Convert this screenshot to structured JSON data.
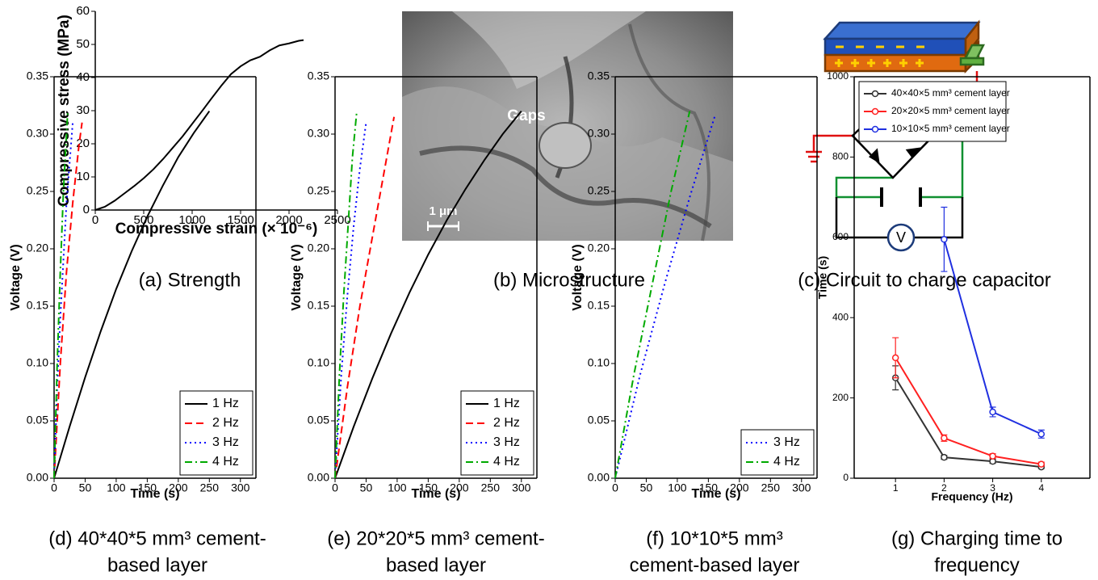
{
  "chart_data": [
    {
      "type": "line",
      "ylabel": "Compressive stress (MPa)",
      "xlabel": "Compressive strain (× 10⁻⁶)",
      "xlim": [
        0,
        2500
      ],
      "xticks": [
        0,
        500,
        1000,
        1500,
        2000,
        2500
      ],
      "ylim": [
        0,
        60
      ],
      "yticks": [
        0,
        10,
        20,
        30,
        40,
        50,
        60
      ],
      "series": [
        {
          "color": "#000000",
          "linestyle": "solid",
          "x": [
            0,
            100,
            200,
            300,
            400,
            500,
            600,
            700,
            800,
            900,
            1000,
            1100,
            1200,
            1300,
            1400,
            1500,
            1600,
            1700,
            1800,
            1900,
            2000,
            2100,
            2150
          ],
          "values": [
            0,
            1,
            2.8,
            5,
            7.2,
            9.6,
            12.3,
            15.4,
            18.8,
            22.2,
            26,
            29.8,
            33.7,
            37.5,
            41,
            43.4,
            45.2,
            46.3,
            48.2,
            49.7,
            50.3,
            51.1,
            51.3
          ]
        }
      ],
      "caption": [
        "(a) Strength"
      ]
    },
    {
      "type": "line",
      "ylabel": "Voltage (V)",
      "xlabel": "Time (s)",
      "legend": "lower right",
      "xlim": [
        0,
        325
      ],
      "xticks": [
        0,
        50,
        100,
        150,
        200,
        250,
        300
      ],
      "ylim": [
        0,
        0.35
      ],
      "yticks": [
        {
          "value": 0,
          "label": "0.00"
        },
        {
          "value": 0.05,
          "label": "0.05"
        },
        {
          "value": 0.1,
          "label": "0.10"
        },
        {
          "value": 0.15,
          "label": "0.15"
        },
        {
          "value": 0.2,
          "label": "0.20"
        },
        {
          "value": 0.25,
          "label": "0.25"
        },
        {
          "value": 0.3,
          "label": "0.30"
        },
        {
          "value": 0.35,
          "label": "0.35"
        }
      ],
      "series": [
        {
          "name": "1 Hz",
          "color": "#000000",
          "linestyle": "solid",
          "x": [
            0,
            25,
            50,
            75,
            100,
            125,
            150,
            175,
            200,
            225,
            250
          ],
          "values": [
            0,
            0.045,
            0.088,
            0.128,
            0.165,
            0.198,
            0.228,
            0.255,
            0.28,
            0.301,
            0.32
          ]
        },
        {
          "name": "2 Hz",
          "color": "#ff0000",
          "linestyle": "dashed",
          "x": [
            0,
            10,
            20,
            30,
            40,
            45
          ],
          "values": [
            0,
            0.1,
            0.18,
            0.24,
            0.29,
            0.31
          ]
        },
        {
          "name": "3 Hz",
          "color": "#0000ff",
          "linestyle": "dotted",
          "x": [
            0,
            5,
            10,
            20,
            30
          ],
          "values": [
            0,
            0.08,
            0.14,
            0.24,
            0.31
          ]
        },
        {
          "name": "4 Hz",
          "color": "#00aa00",
          "linestyle": "dashdot",
          "x": [
            0,
            5,
            10,
            15,
            22
          ],
          "values": [
            0,
            0.1,
            0.18,
            0.25,
            0.32
          ]
        }
      ],
      "caption": [
        "(d) 40*40*5 mm³ cement-",
        "based layer"
      ]
    },
    {
      "type": "line",
      "ylabel": "Voltage (V)",
      "xlabel": "Time (s)",
      "legend": "lower right",
      "xlim": [
        0,
        325
      ],
      "xticks": [
        0,
        50,
        100,
        150,
        200,
        250,
        300
      ],
      "ylim": [
        0,
        0.35
      ],
      "yticks": [
        {
          "value": 0,
          "label": "0.00"
        },
        {
          "value": 0.05,
          "label": "0.05"
        },
        {
          "value": 0.1,
          "label": "0.10"
        },
        {
          "value": 0.15,
          "label": "0.15"
        },
        {
          "value": 0.2,
          "label": "0.20"
        },
        {
          "value": 0.25,
          "label": "0.25"
        },
        {
          "value": 0.3,
          "label": "0.30"
        },
        {
          "value": 0.35,
          "label": "0.35"
        }
      ],
      "series": [
        {
          "name": "1 Hz",
          "color": "#000000",
          "linestyle": "solid",
          "x": [
            0,
            30,
            60,
            90,
            120,
            150,
            180,
            210,
            240,
            270,
            300
          ],
          "values": [
            0,
            0.045,
            0.087,
            0.126,
            0.162,
            0.195,
            0.225,
            0.252,
            0.277,
            0.3,
            0.32
          ]
        },
        {
          "name": "2 Hz",
          "color": "#ff0000",
          "linestyle": "dashed",
          "x": [
            0,
            20,
            40,
            60,
            80,
            95
          ],
          "values": [
            0,
            0.08,
            0.15,
            0.21,
            0.27,
            0.315
          ]
        },
        {
          "name": "3 Hz",
          "color": "#0000ff",
          "linestyle": "dotted",
          "x": [
            0,
            10,
            20,
            30,
            40,
            50
          ],
          "values": [
            0,
            0.09,
            0.16,
            0.22,
            0.27,
            0.31
          ]
        },
        {
          "name": "4 Hz",
          "color": "#00aa00",
          "linestyle": "dashdot",
          "x": [
            0,
            7,
            14,
            21,
            28,
            35
          ],
          "values": [
            0,
            0.09,
            0.16,
            0.22,
            0.28,
            0.32
          ]
        }
      ],
      "caption": [
        "(e) 20*20*5 mm³ cement-",
        "based layer"
      ]
    },
    {
      "type": "line",
      "ylabel": "Voltage (V)",
      "xlabel": "Time (s)",
      "legend": "lower right",
      "xlim": [
        0,
        325
      ],
      "xticks": [
        0,
        50,
        100,
        150,
        200,
        250,
        300
      ],
      "ylim": [
        0,
        0.35
      ],
      "yticks": [
        {
          "value": 0,
          "label": "0.00"
        },
        {
          "value": 0.05,
          "label": "0.05"
        },
        {
          "value": 0.1,
          "label": "0.10"
        },
        {
          "value": 0.15,
          "label": "0.15"
        },
        {
          "value": 0.2,
          "label": "0.20"
        },
        {
          "value": 0.25,
          "label": "0.25"
        },
        {
          "value": 0.3,
          "label": "0.30"
        },
        {
          "value": 0.35,
          "label": "0.35"
        }
      ],
      "series": [
        {
          "name": "3 Hz",
          "color": "#0000ff",
          "linestyle": "dotted",
          "x": [
            0,
            40,
            80,
            120,
            160
          ],
          "values": [
            0,
            0.09,
            0.17,
            0.245,
            0.315
          ]
        },
        {
          "name": "4 Hz",
          "color": "#00aa00",
          "linestyle": "dashdot",
          "x": [
            0,
            30,
            60,
            90,
            120
          ],
          "values": [
            0,
            0.09,
            0.17,
            0.25,
            0.32
          ]
        }
      ],
      "caption": [
        "(f) 10*10*5 mm³",
        "cement-based layer"
      ]
    },
    {
      "type": "line",
      "ylabel": "Time (s)",
      "xlabel": "Frequency (Hz)",
      "legend": "upper left",
      "markers": true,
      "xlim": [
        0.15,
        5
      ],
      "xticks": [
        1,
        2,
        3,
        4
      ],
      "ylim": [
        0,
        1000
      ],
      "yticks": [
        0,
        200,
        400,
        600,
        800,
        1000
      ],
      "x": [
        1,
        2,
        3,
        4
      ],
      "series": [
        {
          "name": "40×40×5 mm³ cement layer",
          "color": "#333333",
          "linestyle": "solid",
          "values": [
            250,
            52,
            42,
            28
          ],
          "errors": [
            30,
            5,
            5,
            4
          ]
        },
        {
          "name": "20×20×5 mm³ cement layer",
          "color": "#ff2020",
          "linestyle": "solid",
          "values": [
            300,
            100,
            55,
            35
          ],
          "errors": [
            50,
            8,
            6,
            5
          ]
        },
        {
          "name": "10×10×5 mm³ cement layer",
          "color": "#2030e0",
          "linestyle": "solid",
          "values": [
            null,
            595,
            165,
            110
          ],
          "errors": [
            null,
            80,
            12,
            10
          ]
        }
      ],
      "caption": [
        "(g) Charging time to",
        "frequency"
      ]
    }
  ],
  "panels": {
    "b": {
      "annotation": "Gaps",
      "scale_bar": "1 μm",
      "caption": "(b) Microstructure"
    },
    "c": {
      "meter": "V",
      "caption": "(c) Circuit to charge capacitor"
    }
  }
}
